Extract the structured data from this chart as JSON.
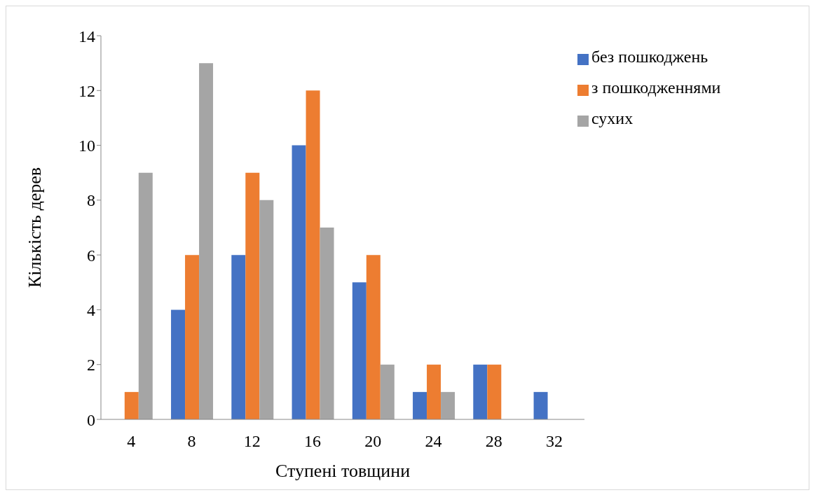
{
  "chart_data": {
    "type": "bar",
    "xlabel": "Ступені товщини",
    "ylabel": "Кількість дерев",
    "categories": [
      "4",
      "8",
      "12",
      "16",
      "20",
      "24",
      "28",
      "32"
    ],
    "series": [
      {
        "name": "без пошкоджень",
        "color": "#4472c4",
        "values": [
          0,
          4,
          6,
          10,
          5,
          1,
          2,
          1
        ]
      },
      {
        "name": "з пошкодженнями",
        "color": "#ed7d31",
        "values": [
          1,
          6,
          9,
          12,
          6,
          2,
          2,
          0
        ]
      },
      {
        "name": "сухих",
        "color": "#a5a5a5",
        "values": [
          9,
          13,
          8,
          7,
          2,
          1,
          0,
          0
        ]
      }
    ],
    "ylim": [
      0,
      14
    ],
    "yticks": [
      0,
      2,
      4,
      6,
      8,
      10,
      12,
      14
    ],
    "grid": false,
    "legend": "top right"
  }
}
